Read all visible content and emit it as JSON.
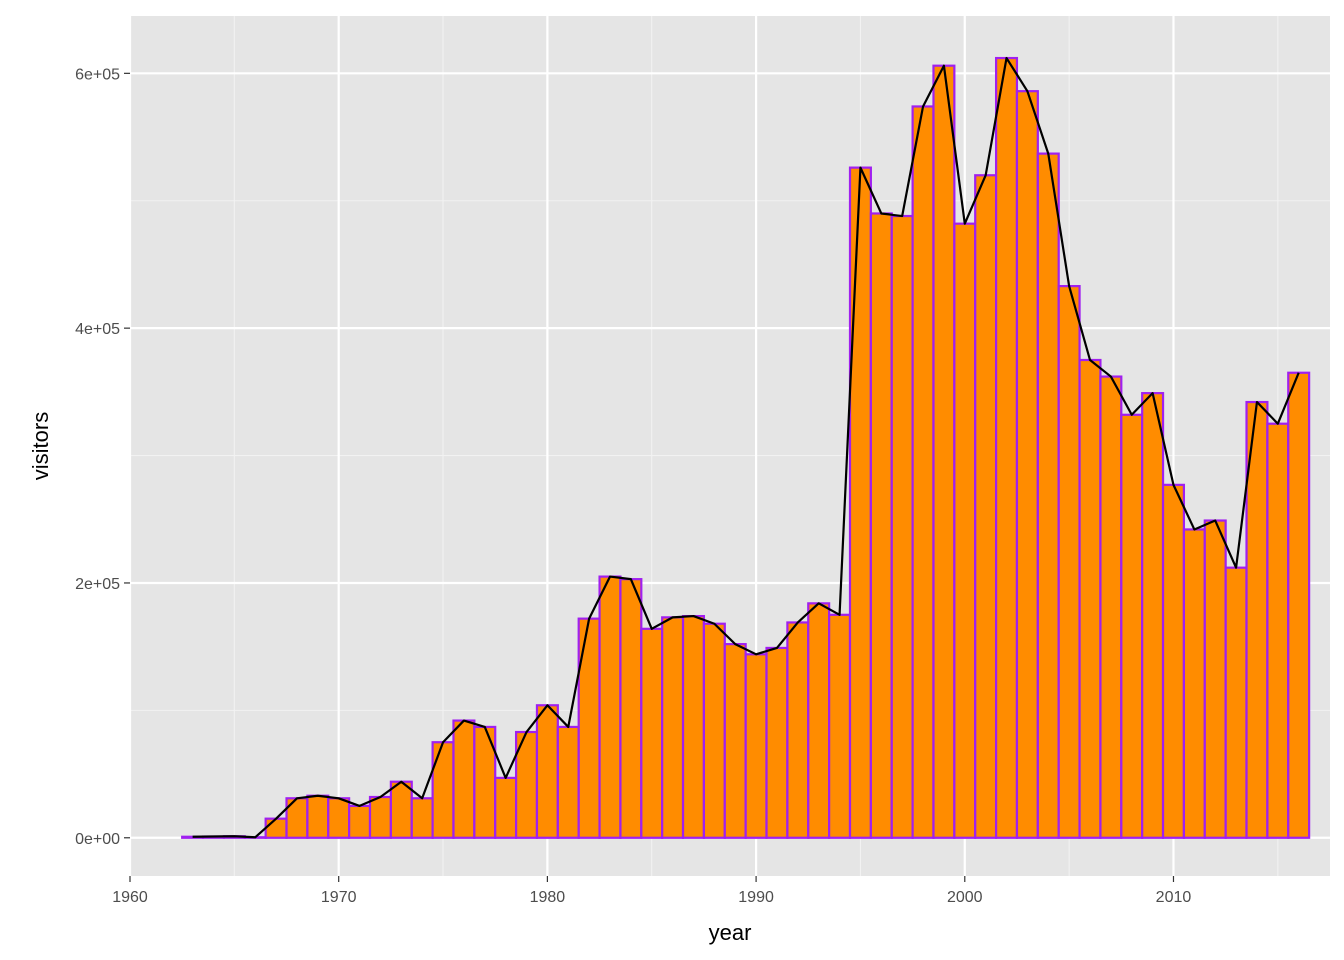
{
  "chart_data": {
    "type": "bar",
    "xlabel": "year",
    "ylabel": "visitors",
    "xlim": [
      1960,
      2017.5
    ],
    "ylim": [
      -30000,
      645000
    ],
    "x_ticks": [
      1960,
      1970,
      1980,
      1990,
      2000,
      2010
    ],
    "x_tick_labels": [
      "1960",
      "1970",
      "1980",
      "1990",
      "2000",
      "2010"
    ],
    "y_ticks": [
      0,
      200000,
      400000,
      600000
    ],
    "y_tick_labels": [
      "0e+00",
      "2e+05",
      "4e+05",
      "6e+05"
    ],
    "grid": true,
    "bar_fill": "#ff8c00",
    "bar_outline": "#a020f0",
    "line_color": "#000000",
    "panel_background": "#e5e5e5",
    "x": [
      1963,
      1964,
      1965,
      1966,
      1967,
      1968,
      1969,
      1970,
      1971,
      1972,
      1973,
      1974,
      1975,
      1976,
      1977,
      1978,
      1979,
      1980,
      1981,
      1982,
      1983,
      1984,
      1985,
      1986,
      1987,
      1988,
      1989,
      1990,
      1991,
      1992,
      1993,
      1994,
      1995,
      1996,
      1997,
      1998,
      1999,
      2000,
      2001,
      2002,
      2003,
      2004,
      2005,
      2006,
      2007,
      2008,
      2009,
      2010,
      2011,
      2012,
      2013,
      2014,
      2015,
      2016
    ],
    "values": [
      800,
      1000,
      1200,
      400,
      15000,
      31000,
      33000,
      31000,
      25000,
      32000,
      44000,
      31000,
      75000,
      92000,
      87000,
      47000,
      83000,
      104000,
      87000,
      172000,
      205000,
      203000,
      164000,
      173000,
      174000,
      168000,
      152000,
      144000,
      149000,
      169000,
      184000,
      175000,
      526000,
      490000,
      488000,
      574000,
      606000,
      482000,
      520000,
      612000,
      586000,
      537000,
      433000,
      375000,
      362000,
      332000,
      349000,
      277000,
      242000,
      249000,
      212000,
      342000,
      325000,
      365000
    ]
  }
}
